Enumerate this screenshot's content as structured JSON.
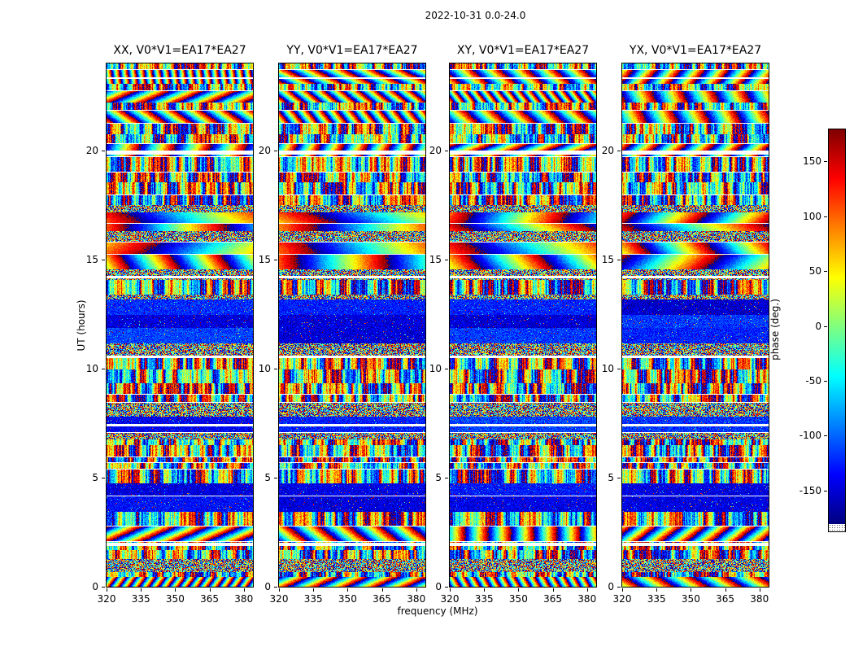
{
  "figure": {
    "title": "2022-10-31 0.0-24.0"
  },
  "chart_data": {
    "type": "heatmap",
    "title": "2022-10-31 0.0-24.0",
    "description": "Visibility phase waterfalls (UT hours vs frequency) for four polarisation products of baseline V0*V1=EA17*EA27; pseudo-random interferometric phase texture with scan bands, data gaps and coherent fringe regions",
    "panels": [
      {
        "pol": "XX",
        "title": "XX, V0*V1=EA17*EA27"
      },
      {
        "pol": "YY",
        "title": "YY, V0*V1=EA17*EA27"
      },
      {
        "pol": "XY",
        "title": "XY, V0*V1=EA17*EA27"
      },
      {
        "pol": "YX",
        "title": "YX, V0*V1=EA17*EA27"
      }
    ],
    "xlabel": "frequency (MHz)",
    "ylabel": "UT (hours)",
    "x_ticks": [
      320,
      335,
      350,
      365,
      380
    ],
    "x_range_mhz": [
      320,
      384
    ],
    "y_ticks": [
      20,
      15,
      10,
      5,
      0
    ],
    "y_range_hours": [
      0,
      24
    ],
    "colorbar": {
      "label": "phase (deg.)",
      "ticks": [
        150,
        100,
        50,
        0,
        -50,
        -100,
        -150
      ],
      "range_deg": [
        -180,
        180
      ],
      "colormap": "jet"
    },
    "texture": {
      "band_seed": 9,
      "panel_seeds": [
        101,
        202,
        303,
        404
      ],
      "white_gaps": [
        [
          23.35,
          2
        ],
        [
          20.02,
          5
        ],
        [
          14.27,
          3
        ],
        [
          10.56,
          2
        ],
        [
          7.47,
          3
        ],
        [
          2.02,
          4
        ]
      ],
      "blue_bands": [
        [
          11.55,
          12.05
        ],
        [
          12.3,
          12.5
        ],
        [
          4.05,
          4.55
        ],
        [
          7.52,
          7.7
        ]
      ],
      "big_fringe_bands": [
        [
          16.5,
          17.15
        ],
        [
          15.1,
          15.5
        ]
      ],
      "top_fringe_above_hour": 20.3
    }
  }
}
